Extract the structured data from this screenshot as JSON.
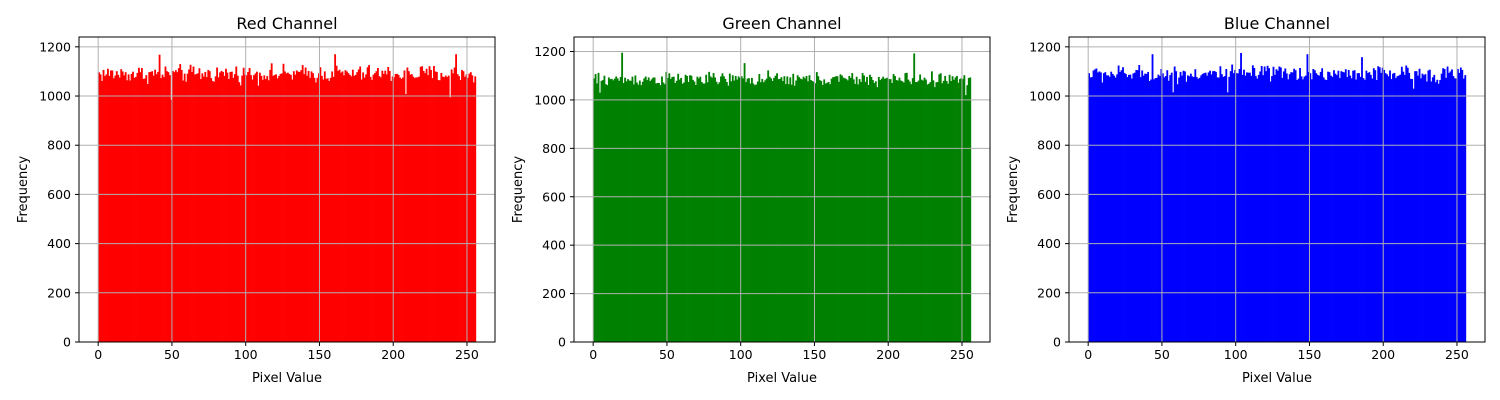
{
  "chart_data": [
    {
      "type": "bar",
      "title": "Red Channel",
      "xlabel": "Pixel Value",
      "ylabel": "Frequency",
      "color": "#ff0000",
      "xlim": [
        -13,
        269
      ],
      "ylim": [
        0,
        1240
      ],
      "xticks": [
        0,
        50,
        100,
        150,
        200,
        250
      ],
      "yticks": [
        0,
        200,
        400,
        600,
        800,
        1000,
        1200
      ],
      "grid": true,
      "bins": {
        "start": 0,
        "width": 1,
        "count": 256
      },
      "approx_frequency_range": [
        980,
        1170
      ],
      "approx_mean_frequency": 1090,
      "notable_peaks": [
        {
          "x": 41,
          "y": 1168
        },
        {
          "x": 160,
          "y": 1170
        },
        {
          "x": 242,
          "y": 1170
        }
      ],
      "notable_dips": [
        {
          "x": 49,
          "y": 985
        },
        {
          "x": 208,
          "y": 1008
        },
        {
          "x": 238,
          "y": 995
        }
      ]
    },
    {
      "type": "bar",
      "title": "Green Channel",
      "xlabel": "Pixel Value",
      "ylabel": "Frequency",
      "color": "#008000",
      "xlim": [
        -13,
        269
      ],
      "ylim": [
        0,
        1260
      ],
      "xticks": [
        0,
        50,
        100,
        150,
        200,
        250
      ],
      "yticks": [
        0,
        200,
        400,
        600,
        800,
        1000,
        1200
      ],
      "grid": true,
      "bins": {
        "start": 0,
        "width": 1,
        "count": 256
      },
      "approx_frequency_range": [
        1020,
        1195
      ],
      "approx_mean_frequency": 1085,
      "notable_peaks": [
        {
          "x": 19,
          "y": 1195
        },
        {
          "x": 217,
          "y": 1192
        },
        {
          "x": 102,
          "y": 1152
        }
      ],
      "notable_dips": [
        {
          "x": 4,
          "y": 1030
        },
        {
          "x": 252,
          "y": 1020
        }
      ]
    },
    {
      "type": "bar",
      "title": "Blue Channel",
      "xlabel": "Pixel Value",
      "ylabel": "Frequency",
      "color": "#0000ff",
      "xlim": [
        -13,
        269
      ],
      "ylim": [
        0,
        1240
      ],
      "xticks": [
        0,
        50,
        100,
        150,
        200,
        250
      ],
      "yticks": [
        0,
        200,
        400,
        600,
        800,
        1000,
        1200
      ],
      "grid": true,
      "bins": {
        "start": 0,
        "width": 1,
        "count": 256
      },
      "approx_frequency_range": [
        1015,
        1175
      ],
      "approx_mean_frequency": 1090,
      "notable_peaks": [
        {
          "x": 43,
          "y": 1170
        },
        {
          "x": 103,
          "y": 1175
        },
        {
          "x": 148,
          "y": 1170
        },
        {
          "x": 185,
          "y": 1158
        }
      ],
      "notable_dips": [
        {
          "x": 57,
          "y": 1015
        },
        {
          "x": 94,
          "y": 1015
        },
        {
          "x": 220,
          "y": 1030
        }
      ]
    }
  ]
}
